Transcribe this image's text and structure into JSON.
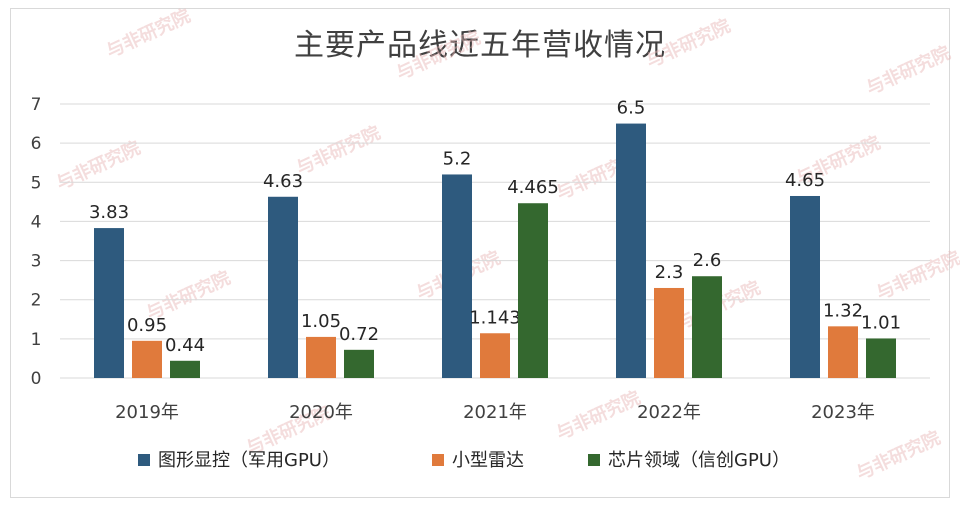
{
  "chart_data": {
    "type": "bar",
    "title": "主要产品线近五年营收情况",
    "categories": [
      "2019年",
      "2020年",
      "2021年",
      "2022年",
      "2023年"
    ],
    "series": [
      {
        "name": "图形显控（军用GPU）",
        "color": "#2e5a7e",
        "values": [
          3.83,
          4.63,
          5.2,
          6.5,
          4.65
        ],
        "labels": [
          "3.83",
          "4.63",
          "5.2",
          "6.5",
          "4.65"
        ]
      },
      {
        "name": "小型雷达",
        "color": "#e07a3c",
        "values": [
          0.95,
          1.05,
          1.143,
          2.3,
          1.32
        ],
        "labels": [
          "0.95",
          "1.05",
          "1.143",
          "2.3",
          "1.32"
        ]
      },
      {
        "name": "芯片领域（信创GPU）",
        "color": "#34682f",
        "values": [
          0.44,
          0.72,
          4.465,
          2.6,
          1.01
        ],
        "labels": [
          "0.44",
          "0.72",
          "4.465",
          "2.6",
          "1.01"
        ]
      }
    ],
    "ylim": [
      0,
      7
    ],
    "yticks": [
      0,
      1,
      2,
      3,
      4,
      5,
      6,
      7
    ],
    "grid": true,
    "legend": "bottom",
    "xlabel": "",
    "ylabel": ""
  },
  "watermark": "与非研究院"
}
